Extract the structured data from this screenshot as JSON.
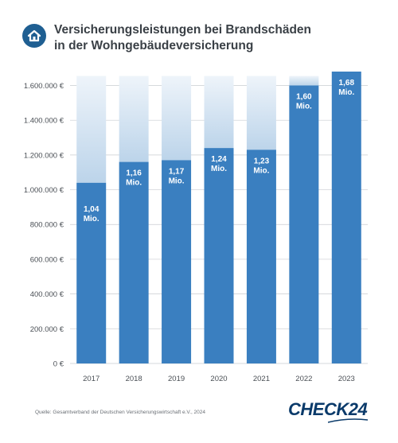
{
  "header": {
    "icon": "home-icon",
    "title_line1": "Versicherungsleistungen bei Brandschäden",
    "title_line2": "in der Wohngebäudeversicherung"
  },
  "colors": {
    "bar": "#3a7fc0",
    "ghost_top": "#eef4fa",
    "ghost_bottom": "#bcd4ea",
    "badge": "#1f5f92",
    "logo": "#0a3a6a"
  },
  "chart_data": {
    "type": "bar",
    "categories": [
      "2017",
      "2018",
      "2019",
      "2020",
      "2021",
      "2022",
      "2023"
    ],
    "values": [
      1040000,
      1160000,
      1170000,
      1240000,
      1230000,
      1600000,
      1680000
    ],
    "data_labels": [
      [
        "1,04",
        "Mio."
      ],
      [
        "1,16",
        "Mio."
      ],
      [
        "1,17",
        "Mio."
      ],
      [
        "1,24",
        "Mio."
      ],
      [
        "1,23",
        "Mio."
      ],
      [
        "1,60",
        "Mio."
      ],
      [
        "1,68",
        "Mio."
      ]
    ],
    "y_ticks": [
      0,
      200000,
      400000,
      600000,
      800000,
      1000000,
      1200000,
      1400000,
      1600000
    ],
    "y_tick_labels": [
      "0 €",
      "200.000 €",
      "400.000 €",
      "600.000 €",
      "800.000 €",
      "1.000.000 €",
      "1.200.000 €",
      "1.400.000 €",
      "1.600.000 €"
    ],
    "ylim": [
      0,
      1680000
    ],
    "grid": true,
    "title": "",
    "xlabel": "",
    "ylabel": ""
  },
  "footer": {
    "source": "Quelle: Gesamtverband der Deutschen Versicherungswirtschaft e.V., 2024",
    "logo_text": "CHECK24"
  }
}
